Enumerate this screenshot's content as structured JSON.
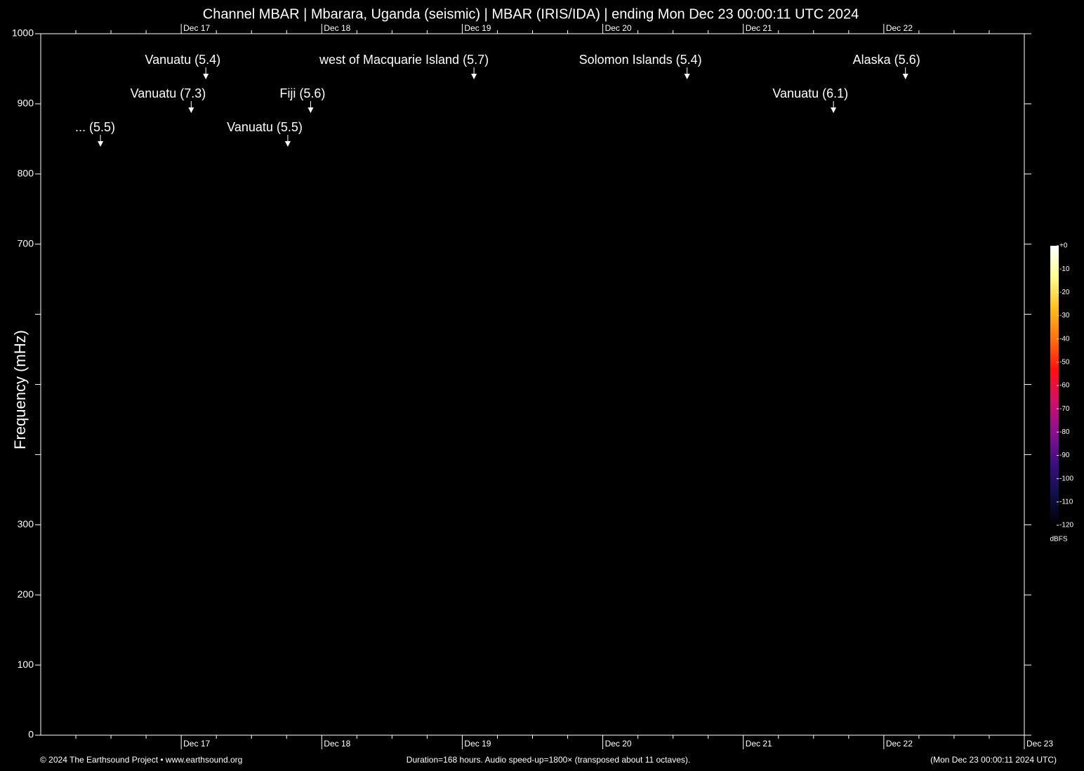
{
  "chart_data": {
    "type": "spectrogram",
    "title": "Channel MBAR | Mbarara, Uganda (seismic) | MBAR (IRIS/IDA) | ending Mon Dec 23 00:00:11 UTC 2024",
    "y_label": "Frequency (mHz)",
    "ylim": [
      0,
      1000
    ],
    "yticks": [
      0,
      100,
      200,
      300,
      700,
      800,
      900,
      1000
    ],
    "yminor_ticks": [
      400,
      500,
      600
    ],
    "xlim": [
      0,
      168
    ],
    "xticks": [
      {
        "value": 24,
        "label": "Dec 17"
      },
      {
        "value": 48,
        "label": "Dec 18"
      },
      {
        "value": 72,
        "label": "Dec 19"
      },
      {
        "value": 96,
        "label": "Dec 20"
      },
      {
        "value": 120,
        "label": "Dec 21"
      },
      {
        "value": 144,
        "label": "Dec 22"
      },
      {
        "value": 168,
        "label": "Dec 23"
      }
    ],
    "xminor_ticks": [
      6,
      12,
      18,
      30,
      36,
      42,
      54,
      60,
      66,
      78,
      84,
      90,
      102,
      108,
      114,
      126,
      132,
      138,
      150,
      156,
      162
    ],
    "events": [
      {
        "label": "... (5.5)",
        "x": 10.2
      },
      {
        "label": "Vanuatu (7.3)",
        "x": 25.7
      },
      {
        "label": "Vanuatu (5.4)",
        "x": 28.2
      },
      {
        "label": "Vanuatu (5.5)",
        "x": 42.2
      },
      {
        "label": "Fiji (5.6)",
        "x": 46.1
      },
      {
        "label": "west of Macquarie Island (5.7)",
        "x": 74.0
      },
      {
        "label": "Solomon Islands (5.4)",
        "x": 110.4
      },
      {
        "label": "Vanuatu (6.1)",
        "x": 135.4
      },
      {
        "label": "Alaska (5.6)",
        "x": 147.7
      }
    ],
    "colorbar": {
      "label": "dBFS",
      "lim": [
        -120,
        0
      ],
      "ticks": [
        {
          "value": 0,
          "label": "+0"
        },
        -10,
        -20,
        -30,
        -40,
        -50,
        -60,
        -70,
        -80,
        -90,
        -100,
        -110,
        -120
      ],
      "colors": [
        "#000000",
        "#10104a",
        "#3a1080",
        "#8a1090",
        "#d0106a",
        "#ff1010",
        "#ff7010",
        "#ffc020",
        "#ffff90",
        "#ffffff"
      ]
    },
    "footer_left": "© 2024 The Earthsound Project • www.earthsound.org",
    "footer_center": "Duration=168 hours. Audio speed-up=1800× (transposed about 11 octaves).",
    "footer_right": "(Mon Dec 23 00:00:11 2024 UTC)"
  }
}
